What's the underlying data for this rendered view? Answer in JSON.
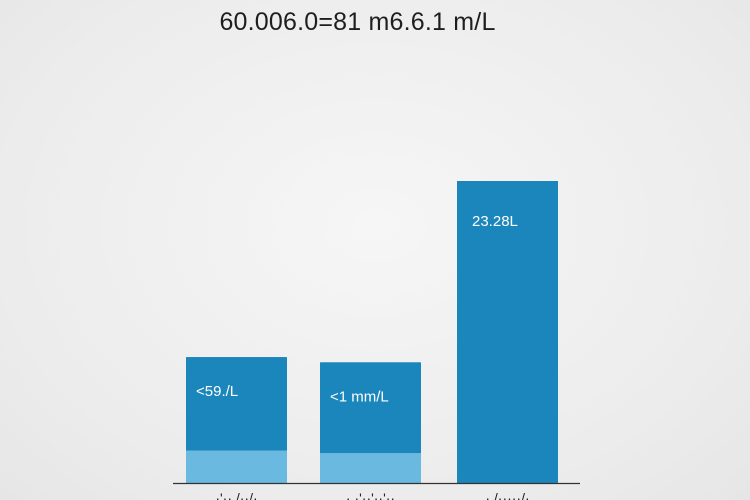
{
  "chart_data": {
    "type": "bar",
    "title": "60.006.0=81  m6.6.1 m/L",
    "xlabel": "",
    "ylabel": "",
    "ylim": [
      0,
      30
    ],
    "grid": false,
    "legend": "none",
    "categories": [
      "·'·· /··/·",
      "· ·'··'··'··",
      "· /·····/·"
    ],
    "series": [
      {
        "values": [
          7.2,
          7.0,
          23.28
        ]
      },
      {
        "values": [
          2.5,
          2.3,
          0
        ]
      }
    ],
    "data_labels": [
      "<59./L",
      "<1 mm/L",
      "23.28L"
    ],
    "colors": {
      "dark": "#1a86bc",
      "light": "#69b9e0",
      "baseline": "#333333"
    }
  }
}
